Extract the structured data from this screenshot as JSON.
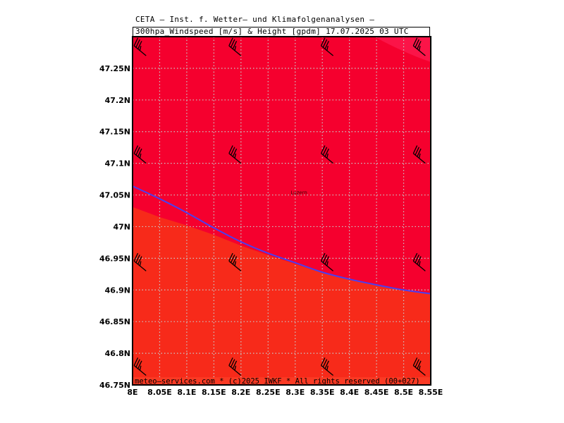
{
  "header": {
    "line1": "CETA – Inst. f. Wetter– und Klimafolgenanalysen –",
    "line2": "300hpa_Windspeed [m/s] & Height [gpdm] 17.07.2025 03 UTC"
  },
  "footer": {
    "text": "meteo–services.com * (c)2025 IWKF * All rights reserved (00+027)"
  },
  "map": {
    "lon_range": [
      8.0,
      8.55
    ],
    "lat_range": [
      46.75,
      47.3
    ],
    "city": {
      "name": "Luzern",
      "lon": 8.31,
      "lat": 47.05
    },
    "colors": {
      "field_main": "#f5002e",
      "field_south": "#f72a1a",
      "field_corner": "#fb1448",
      "height_contour": "#4a3ff0",
      "grid": "#c9c9c9"
    },
    "x_ticks": [
      {
        "value": 8.0,
        "label": "8E"
      },
      {
        "value": 8.05,
        "label": "8.05E"
      },
      {
        "value": 8.1,
        "label": "8.1E"
      },
      {
        "value": 8.15,
        "label": "8.15E"
      },
      {
        "value": 8.2,
        "label": "8.2E"
      },
      {
        "value": 8.25,
        "label": "8.25E"
      },
      {
        "value": 8.3,
        "label": "8.3E"
      },
      {
        "value": 8.35,
        "label": "8.35E"
      },
      {
        "value": 8.4,
        "label": "8.4E"
      },
      {
        "value": 8.45,
        "label": "8.45E"
      },
      {
        "value": 8.5,
        "label": "8.5E"
      },
      {
        "value": 8.55,
        "label": "8.55E"
      }
    ],
    "y_ticks": [
      {
        "value": 47.25,
        "label": "47.25N"
      },
      {
        "value": 47.2,
        "label": "47.2N"
      },
      {
        "value": 47.15,
        "label": "47.15N"
      },
      {
        "value": 47.1,
        "label": "47.1N"
      },
      {
        "value": 47.05,
        "label": "47.05N"
      },
      {
        "value": 47.0,
        "label": "47N"
      },
      {
        "value": 46.95,
        "label": "46.95N"
      },
      {
        "value": 46.9,
        "label": "46.9N"
      },
      {
        "value": 46.85,
        "label": "46.85N"
      },
      {
        "value": 46.8,
        "label": "46.8N"
      },
      {
        "value": 46.75,
        "label": "46.75N"
      }
    ],
    "height_contour": [
      [
        8.0,
        47.064
      ],
      [
        8.05,
        47.044
      ],
      [
        8.1,
        47.022
      ],
      [
        8.15,
        46.998
      ],
      [
        8.2,
        46.976
      ],
      [
        8.25,
        46.958
      ],
      [
        8.3,
        46.943
      ],
      [
        8.35,
        46.928
      ],
      [
        8.4,
        46.917
      ],
      [
        8.45,
        46.908
      ],
      [
        8.5,
        46.9
      ],
      [
        8.55,
        46.894
      ]
    ],
    "speed_boundary": [
      [
        8.0,
        47.031
      ],
      [
        8.05,
        47.015
      ],
      [
        8.1,
        47.002
      ],
      [
        8.15,
        46.987
      ],
      [
        8.2,
        46.97
      ],
      [
        8.25,
        46.955
      ],
      [
        8.3,
        46.941
      ],
      [
        8.35,
        46.927
      ],
      [
        8.4,
        46.917
      ],
      [
        8.45,
        46.908
      ],
      [
        8.5,
        46.9
      ],
      [
        8.55,
        46.894
      ]
    ],
    "wind_barbs": [
      {
        "lon": 8.025,
        "lat": 47.27,
        "direction_deg": 300,
        "speed_kt": 35
      },
      {
        "lon": 8.2,
        "lat": 47.27,
        "direction_deg": 300,
        "speed_kt": 35
      },
      {
        "lon": 8.37,
        "lat": 47.27,
        "direction_deg": 300,
        "speed_kt": 35
      },
      {
        "lon": 8.54,
        "lat": 47.27,
        "direction_deg": 300,
        "speed_kt": 35
      },
      {
        "lon": 8.025,
        "lat": 47.1,
        "direction_deg": 300,
        "speed_kt": 35
      },
      {
        "lon": 8.2,
        "lat": 47.1,
        "direction_deg": 300,
        "speed_kt": 35
      },
      {
        "lon": 8.37,
        "lat": 47.1,
        "direction_deg": 300,
        "speed_kt": 35
      },
      {
        "lon": 8.54,
        "lat": 47.1,
        "direction_deg": 300,
        "speed_kt": 35
      },
      {
        "lon": 8.025,
        "lat": 46.93,
        "direction_deg": 300,
        "speed_kt": 35
      },
      {
        "lon": 8.2,
        "lat": 46.93,
        "direction_deg": 300,
        "speed_kt": 35
      },
      {
        "lon": 8.37,
        "lat": 46.93,
        "direction_deg": 300,
        "speed_kt": 35
      },
      {
        "lon": 8.54,
        "lat": 46.93,
        "direction_deg": 300,
        "speed_kt": 35
      },
      {
        "lon": 8.025,
        "lat": 46.765,
        "direction_deg": 300,
        "speed_kt": 35
      },
      {
        "lon": 8.2,
        "lat": 46.765,
        "direction_deg": 300,
        "speed_kt": 35
      },
      {
        "lon": 8.37,
        "lat": 46.765,
        "direction_deg": 300,
        "speed_kt": 35
      },
      {
        "lon": 8.54,
        "lat": 46.765,
        "direction_deg": 300,
        "speed_kt": 35
      }
    ]
  }
}
